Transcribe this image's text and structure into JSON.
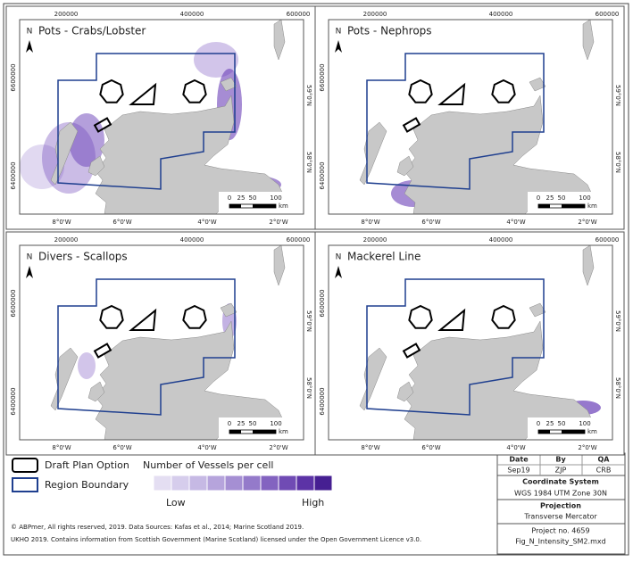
{
  "panels": [
    {
      "title": "Pots - Crabs/Lobster"
    },
    {
      "title": "Pots - Nephrops"
    },
    {
      "title": "Divers - Scallops"
    },
    {
      "title": "Mackerel Line"
    }
  ],
  "axes": {
    "top": [
      "200000",
      "400000",
      "600000"
    ],
    "left": [
      "6600000",
      "6400000"
    ],
    "right": [
      "59°0'N",
      "58°0'N"
    ],
    "bottom": [
      "8°0'W",
      "6°0'W",
      "4°0'W",
      "2°0'W"
    ]
  },
  "north_arrow": "N",
  "scale_bar": {
    "labels": [
      "0",
      "25",
      "50",
      "100"
    ],
    "unit": "km"
  },
  "legend": {
    "draft_plan_option": "Draft Plan Option",
    "region_boundary": "Region Boundary",
    "intensity_title": "Number of Vessels per cell",
    "low": "Low",
    "high": "High",
    "ramp_colors": [
      "#e4def2",
      "#d6cdec",
      "#c6b9e4",
      "#b6a4dc",
      "#a58fd3",
      "#947aca",
      "#8363c0",
      "#704bb4",
      "#5c33a6",
      "#461f92"
    ]
  },
  "info": {
    "headers": [
      "Date",
      "By",
      "QA"
    ],
    "values": [
      "Sep19",
      "ZJP",
      "CRB"
    ],
    "coordinate_system_label": "Coordinate System",
    "coordinate_system": "WGS 1984 UTM Zone 30N",
    "projection_label": "Projection",
    "projection": "Transverse Mercator",
    "project_no": "Project no. 4659",
    "file": "Fig_N_Intensity_SM2.mxd"
  },
  "credits": [
    "© ABPmer, All rights reserved, 2019. Data Sources: Kafas et al., 2014; Marine Scotland 2019.",
    "UKHO 2019. Contains information from Scottish Government (Marine Scotland) licensed under the Open Government Licence v3.0."
  ]
}
